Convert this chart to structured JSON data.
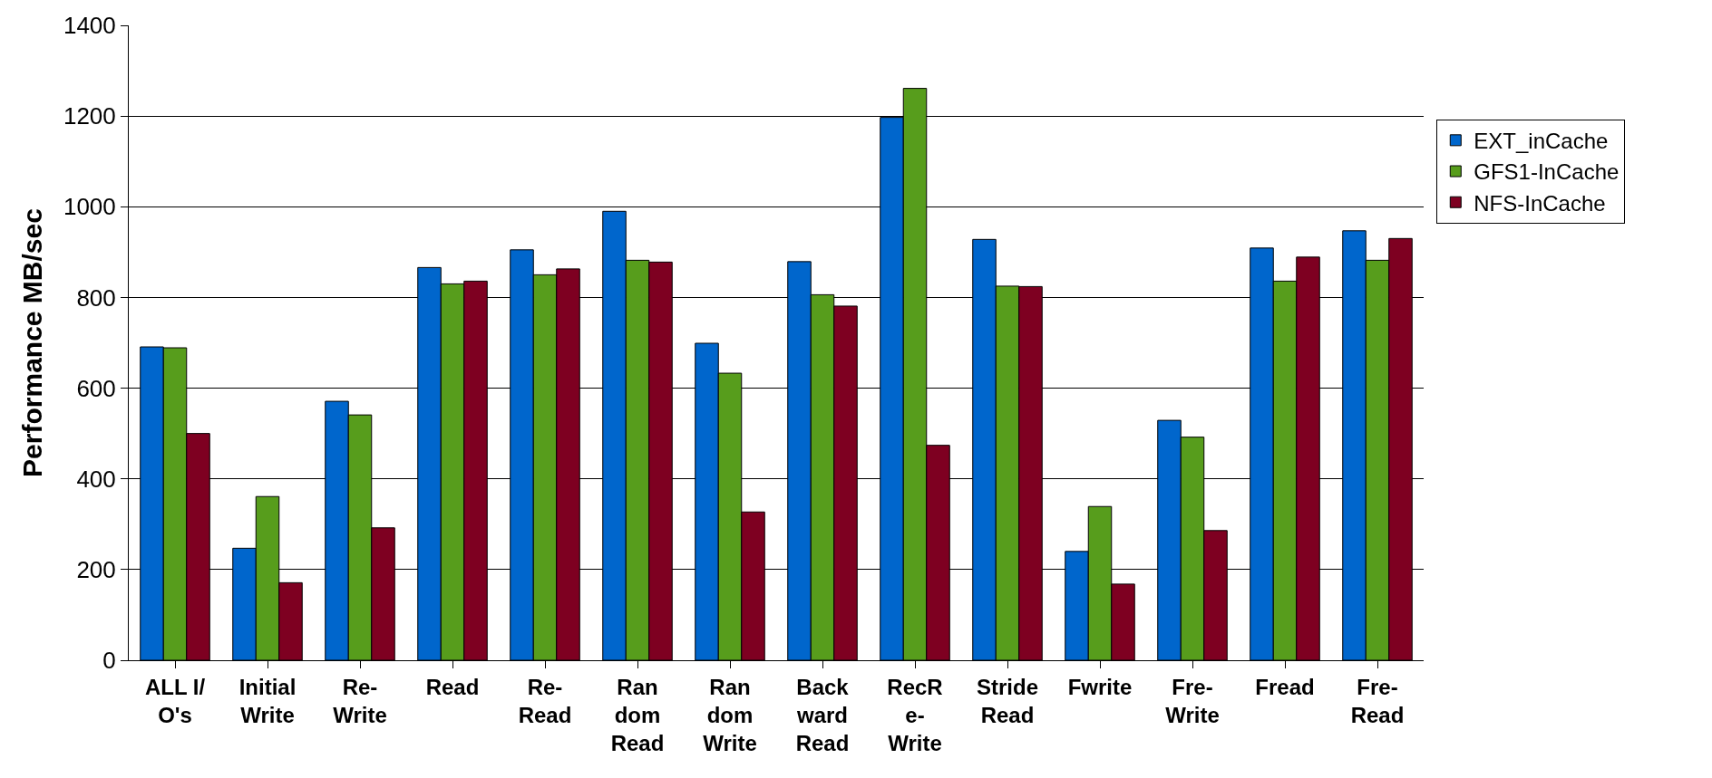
{
  "chart_data": {
    "type": "bar",
    "ylabel": "Performance MB/sec",
    "categories": [
      "ALL I/\nO's",
      "Initial\nWrite",
      "Re-\nWrite",
      "Read",
      "Re-\nRead",
      "Ran\ndom\nRead",
      "Ran\ndom\nWrite",
      "Back\nward\nRead",
      "RecR\ne-\nWrite",
      "Stride\nRead",
      "Fwrite",
      "Fre-\nWrite",
      "Fread",
      "Fre-\nRead"
    ],
    "series": [
      {
        "name": "EXT_inCache",
        "color": "#0066cc",
        "values": [
          691,
          247,
          571,
          866,
          905,
          990,
          699,
          879,
          1197,
          928,
          240,
          529,
          909,
          947
        ]
      },
      {
        "name": "GFS1-InCache",
        "color": "#579d1c",
        "values": [
          689,
          361,
          541,
          830,
          850,
          882,
          633,
          806,
          1261,
          825,
          339,
          492,
          836,
          882
        ]
      },
      {
        "name": "NFS-InCache",
        "color": "#7e0021",
        "values": [
          500,
          171,
          292,
          836,
          863,
          878,
          327,
          781,
          474,
          824,
          168,
          286,
          889,
          930
        ]
      }
    ],
    "ylim": [
      0,
      1400
    ],
    "yticks": [
      0,
      200,
      400,
      600,
      800,
      1000,
      1200,
      1400
    ],
    "grid": "y",
    "legend": "right"
  }
}
